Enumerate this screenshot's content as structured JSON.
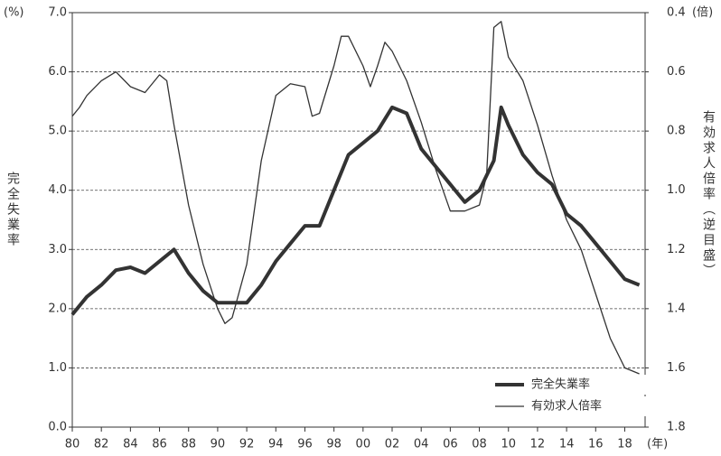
{
  "chart_data": {
    "type": "line",
    "y_label": "完全失業率",
    "y2_label": "有効求人倍率（逆目盛）",
    "y_unit": "(%)",
    "y2_unit": "(倍)",
    "x_unit": "(年)",
    "xlim": [
      1980,
      2019.4
    ],
    "xticks": [
      {
        "value": 1980,
        "label": "80"
      },
      {
        "value": 1982,
        "label": "82"
      },
      {
        "value": 1984,
        "label": "84"
      },
      {
        "value": 1986,
        "label": "86"
      },
      {
        "value": 1988,
        "label": "88"
      },
      {
        "value": 1990,
        "label": "90"
      },
      {
        "value": 1992,
        "label": "92"
      },
      {
        "value": 1994,
        "label": "94"
      },
      {
        "value": 1996,
        "label": "96"
      },
      {
        "value": 1998,
        "label": "98"
      },
      {
        "value": 2000,
        "label": "00"
      },
      {
        "value": 2002,
        "label": "02"
      },
      {
        "value": 2004,
        "label": "04"
      },
      {
        "value": 2006,
        "label": "06"
      },
      {
        "value": 2008,
        "label": "08"
      },
      {
        "value": 2010,
        "label": "10"
      },
      {
        "value": 2012,
        "label": "12"
      },
      {
        "value": 2014,
        "label": "14"
      },
      {
        "value": 2016,
        "label": "16"
      },
      {
        "value": 2018,
        "label": "18"
      }
    ],
    "ylim": [
      0,
      7
    ],
    "yticks": [
      {
        "value": 0,
        "label": "0.0"
      },
      {
        "value": 1,
        "label": "1.0"
      },
      {
        "value": 2,
        "label": "2.0"
      },
      {
        "value": 3,
        "label": "3.0"
      },
      {
        "value": 4,
        "label": "4.0"
      },
      {
        "value": 5,
        "label": "5.0"
      },
      {
        "value": 6,
        "label": "6.0"
      },
      {
        "value": 7,
        "label": "7.0"
      }
    ],
    "y2lim": [
      1.8,
      0.4
    ],
    "y2ticks": [
      1.8,
      1.6,
      1.4,
      1.2,
      {
        "value": 1,
        "label": "1.0"
      },
      0.8,
      0.6,
      0.4
    ],
    "grid": true,
    "legend": "lower right",
    "series": [
      {
        "name": "完全失業率",
        "color": "#333333",
        "line_width": 4,
        "x": [
          1980,
          1981,
          1982,
          1983,
          1984,
          1985,
          1986,
          1987,
          1988,
          1989,
          1990,
          1991,
          1992,
          1993,
          1994,
          1995,
          1996,
          1997,
          1998,
          1999,
          2000,
          2001,
          2002,
          2003,
          2004,
          2005,
          2006,
          2007,
          2008,
          2009,
          2009.5,
          2010,
          2011,
          2012,
          2013,
          2014,
          2015,
          2016,
          2017,
          2018,
          2019
        ],
        "values": [
          1.9,
          2.2,
          2.4,
          2.65,
          2.7,
          2.6,
          2.8,
          3.0,
          2.6,
          2.3,
          2.1,
          2.1,
          2.1,
          2.4,
          2.8,
          3.1,
          3.4,
          3.4,
          4.0,
          4.6,
          4.8,
          5.0,
          5.4,
          5.3,
          4.7,
          4.4,
          4.1,
          3.8,
          4.0,
          4.5,
          5.4,
          5.1,
          4.6,
          4.3,
          4.1,
          3.6,
          3.4,
          3.1,
          2.8,
          2.5,
          2.4
        ]
      },
      {
        "name": "有効求人倍率",
        "color": "#333333",
        "line_width": 1.3,
        "axis": "y2",
        "x": [
          1980,
          1980.5,
          1981,
          1982,
          1983,
          1984,
          1985,
          1986,
          1986.5,
          1987,
          1988,
          1989,
          1990,
          1990.5,
          1991,
          1992,
          1993,
          1994,
          1995,
          1996,
          1996.5,
          1997,
          1998,
          1998.5,
          1999,
          2000,
          2000.5,
          2001,
          2001.5,
          2002,
          2003,
          2004,
          2005,
          2006,
          2007,
          2008,
          2008.5,
          2009,
          2009.5,
          2010,
          2011,
          2012,
          2013,
          2014,
          2015,
          2016,
          2017,
          2018,
          2019
        ],
        "values": [
          0.75,
          0.72,
          0.68,
          0.63,
          0.6,
          0.65,
          0.67,
          0.61,
          0.63,
          0.78,
          1.05,
          1.25,
          1.4,
          1.45,
          1.43,
          1.25,
          0.9,
          0.68,
          0.64,
          0.65,
          0.75,
          0.74,
          0.58,
          0.48,
          0.48,
          0.58,
          0.65,
          0.58,
          0.5,
          0.53,
          0.63,
          0.77,
          0.93,
          1.07,
          1.07,
          1.05,
          0.95,
          0.45,
          0.43,
          0.55,
          0.63,
          0.78,
          0.95,
          1.1,
          1.2,
          1.35,
          1.5,
          1.6,
          1.62
        ]
      }
    ]
  }
}
